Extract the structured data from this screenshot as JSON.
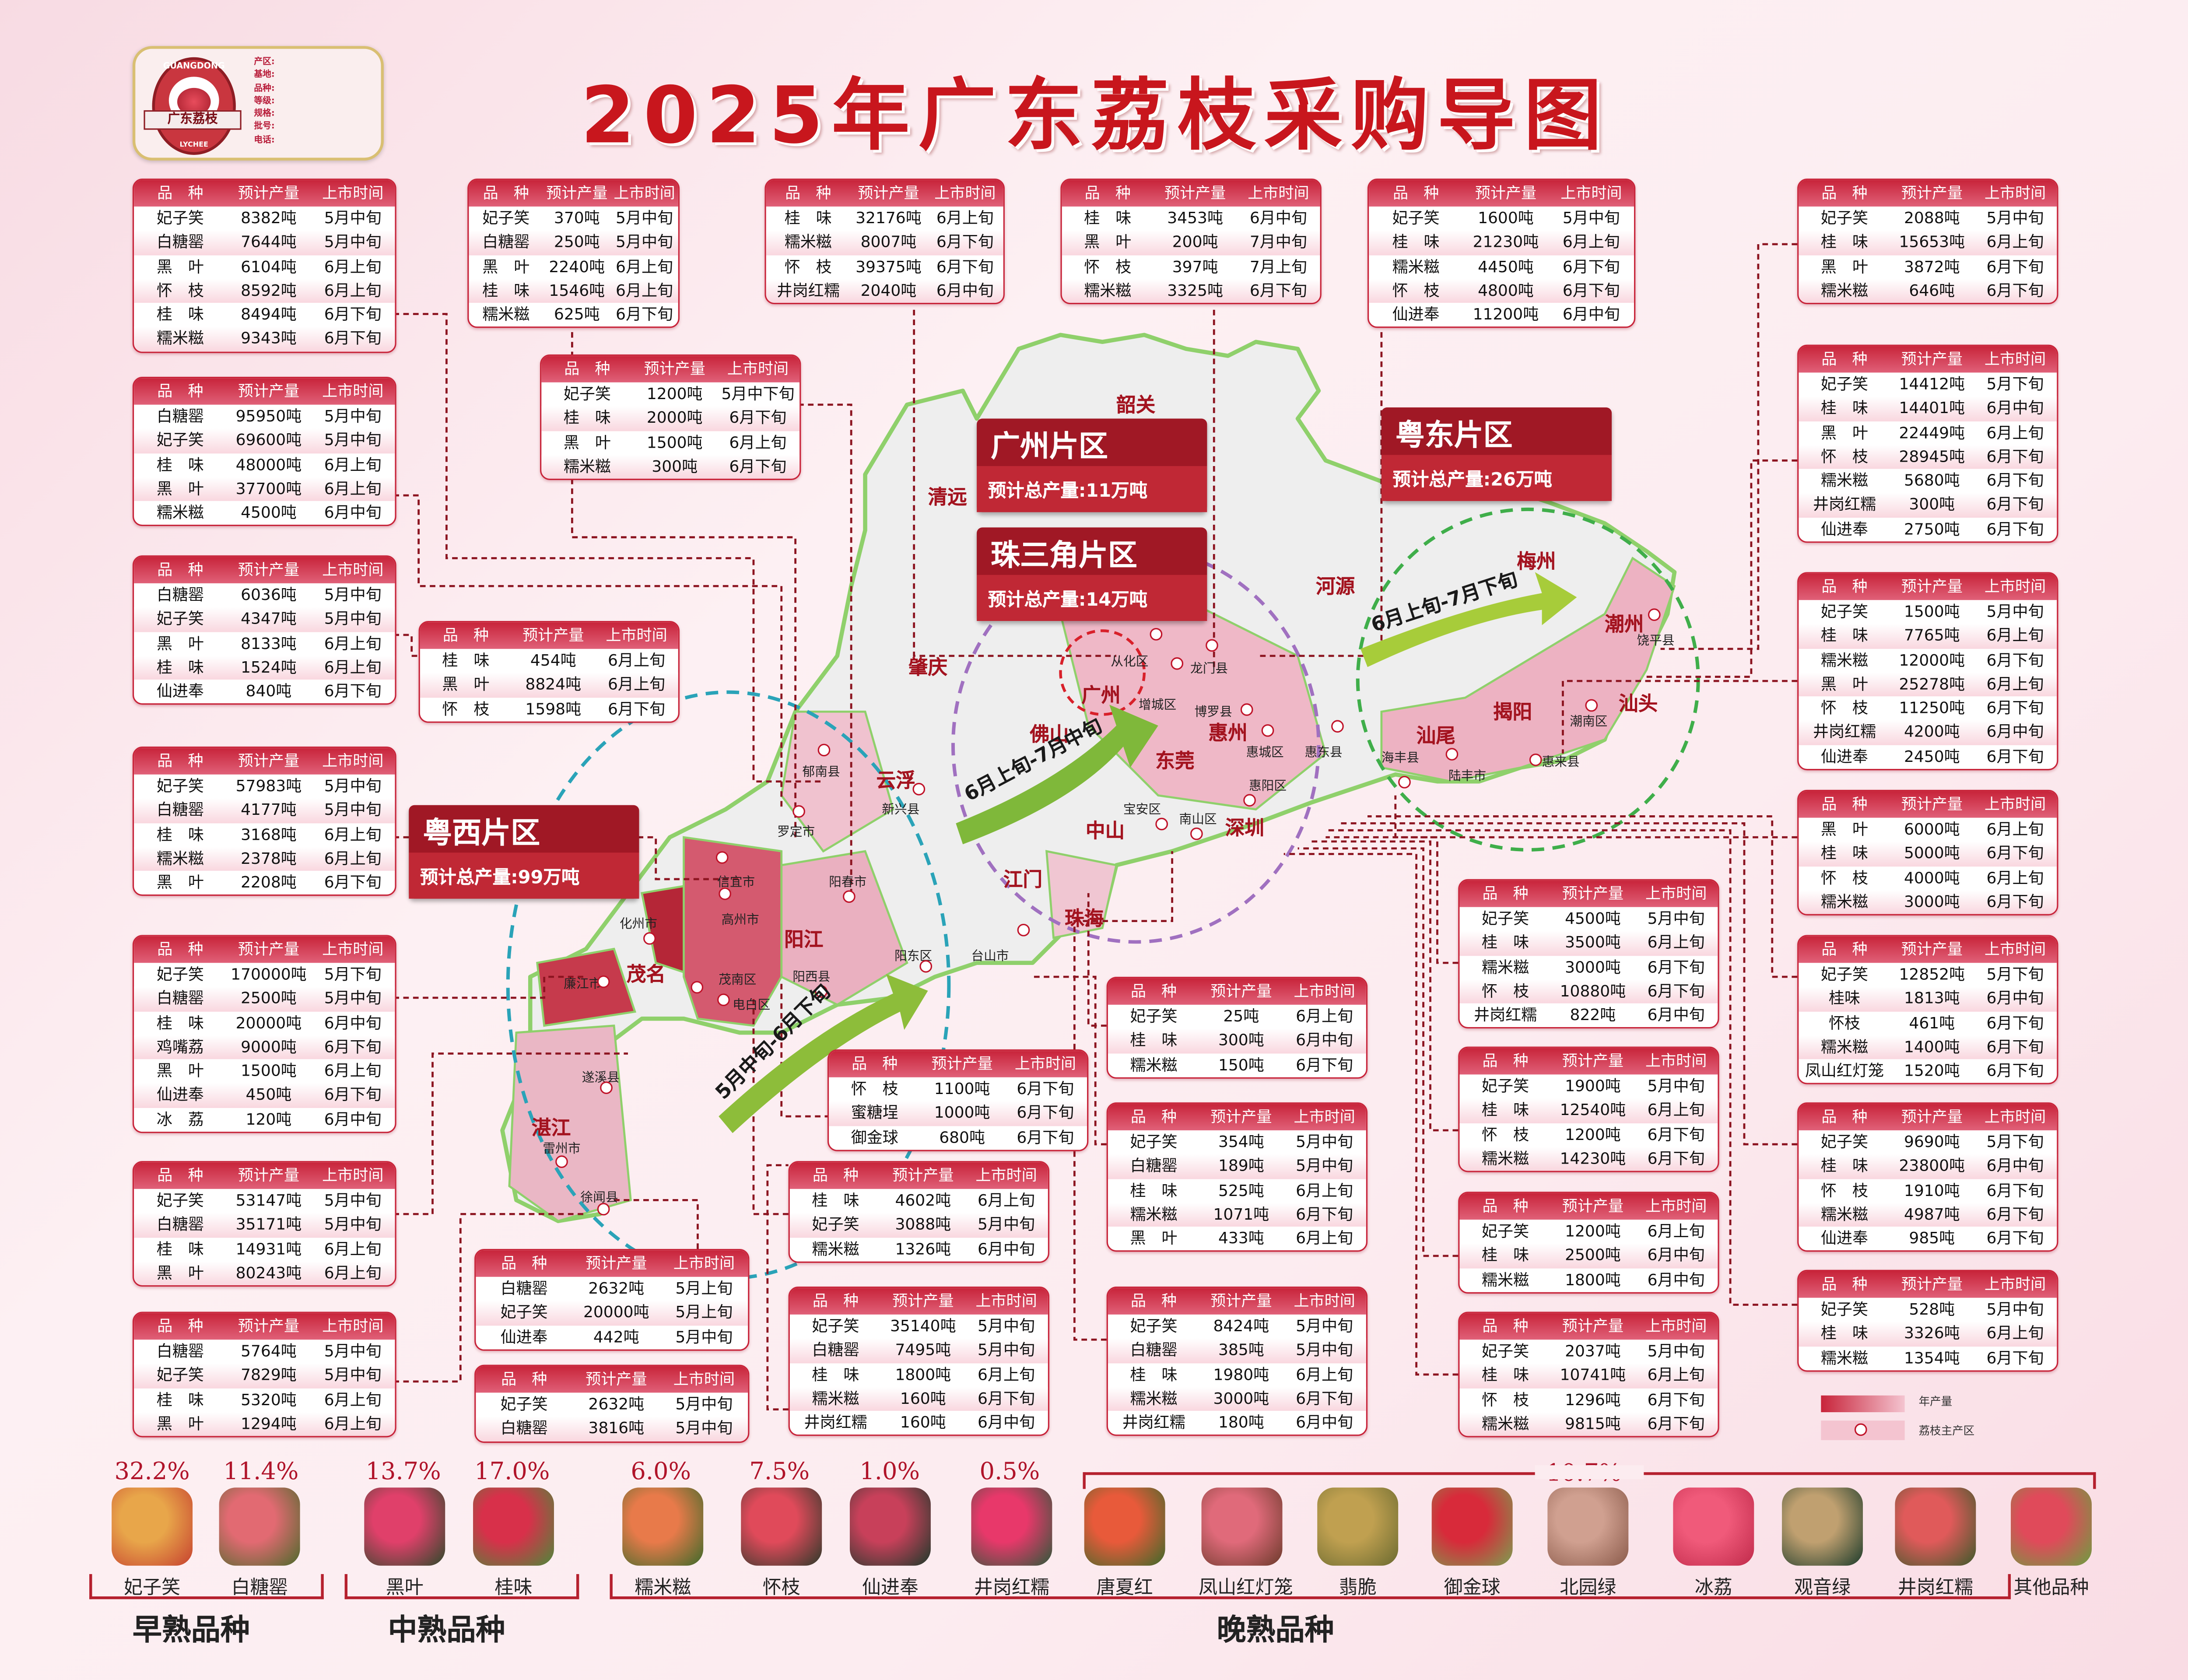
{
  "title": "2025年广东荔枝采购导图",
  "logo": {
    "brand_cn": "广东荔枝",
    "brand_en_top": "GUANGDONG",
    "brand_en_bottom": "LYCHEE",
    "fields": [
      "产区:",
      "基地:",
      "品种:",
      "等级:",
      "规格:",
      "批号:",
      "电话:"
    ]
  },
  "table_header": [
    "品　种",
    "预计产量",
    "上市时间"
  ],
  "tables": [
    {
      "rows": [
        [
          "妃子笑",
          "8382吨",
          "5月中旬"
        ],
        [
          "白糖罂",
          "7644吨",
          "5月中旬"
        ],
        [
          "黑　叶",
          "6104吨",
          "6月上旬"
        ],
        [
          "怀　枝",
          "8592吨",
          "6月上旬"
        ],
        [
          "桂　味",
          "8494吨",
          "6月下旬"
        ],
        [
          "糯米糍",
          "9343吨",
          "6月下旬"
        ]
      ]
    },
    {
      "rows": [
        [
          "白糖罂",
          "95950吨",
          "5月中旬"
        ],
        [
          "妃子笑",
          "69600吨",
          "5月中旬"
        ],
        [
          "桂　味",
          "48000吨",
          "6月上旬"
        ],
        [
          "黑　叶",
          "37700吨",
          "6月上旬"
        ],
        [
          "糯米糍",
          "4500吨",
          "6月中旬"
        ]
      ]
    },
    {
      "rows": [
        [
          "白糖罂",
          "6036吨",
          "5月中旬"
        ],
        [
          "妃子笑",
          "4347吨",
          "5月中旬"
        ],
        [
          "黑　叶",
          "8133吨",
          "6月上旬"
        ],
        [
          "桂　味",
          "1524吨",
          "6月上旬"
        ],
        [
          "仙进奉",
          "840吨",
          "6月下旬"
        ]
      ]
    },
    {
      "rows": [
        [
          "妃子笑",
          "57983吨",
          "5月中旬"
        ],
        [
          "白糖罂",
          "4177吨",
          "5月中旬"
        ],
        [
          "桂　味",
          "3168吨",
          "6月上旬"
        ],
        [
          "糯米糍",
          "2378吨",
          "6月上旬"
        ],
        [
          "黑　叶",
          "2208吨",
          "6月下旬"
        ]
      ]
    },
    {
      "rows": [
        [
          "妃子笑",
          "170000吨",
          "5月下旬"
        ],
        [
          "白糖罂",
          "2500吨",
          "5月中旬"
        ],
        [
          "桂　味",
          "20000吨",
          "6月中旬"
        ],
        [
          "鸡嘴荔",
          "9000吨",
          "6月下旬"
        ],
        [
          "黑　叶",
          "1500吨",
          "6月上旬"
        ],
        [
          "仙进奉",
          "450吨",
          "6月下旬"
        ],
        [
          "冰　荔",
          "120吨",
          "6月中旬"
        ]
      ]
    },
    {
      "rows": [
        [
          "妃子笑",
          "53147吨",
          "5月中旬"
        ],
        [
          "白糖罂",
          "35171吨",
          "5月中旬"
        ],
        [
          "桂　味",
          "14931吨",
          "6月上旬"
        ],
        [
          "黑　叶",
          "80243吨",
          "6月上旬"
        ]
      ]
    },
    {
      "rows": [
        [
          "白糖罂",
          "5764吨",
          "5月中旬"
        ],
        [
          "妃子笑",
          "7829吨",
          "5月中旬"
        ],
        [
          "桂　味",
          "5320吨",
          "6月上旬"
        ],
        [
          "黑　叶",
          "1294吨",
          "6月上旬"
        ]
      ]
    },
    {
      "rows": [
        [
          "妃子笑",
          "370吨",
          "5月中旬"
        ],
        [
          "白糖罂",
          "250吨",
          "5月中旬"
        ],
        [
          "黑　叶",
          "2240吨",
          "6月上旬"
        ],
        [
          "桂　味",
          "1546吨",
          "6月上旬"
        ],
        [
          "糯米糍",
          "625吨",
          "6月下旬"
        ]
      ]
    },
    {
      "rows": [
        [
          "妃子笑",
          "1200吨",
          "5月中下旬"
        ],
        [
          "桂　味",
          "2000吨",
          "6月下旬"
        ],
        [
          "黑　叶",
          "1500吨",
          "6月上旬"
        ],
        [
          "糯米糍",
          "300吨",
          "6月下旬"
        ]
      ]
    },
    {
      "rows": [
        [
          "桂　味",
          "454吨",
          "6月上旬"
        ],
        [
          "黑　叶",
          "8824吨",
          "6月上旬"
        ],
        [
          "怀　枝",
          "1598吨",
          "6月下旬"
        ]
      ]
    },
    {
      "rows": [
        [
          "桂　味",
          "32176吨",
          "6月上旬"
        ],
        [
          "糯米糍",
          "8007吨",
          "6月下旬"
        ],
        [
          "怀　枝",
          "39375吨",
          "6月下旬"
        ],
        [
          "井岗红糯",
          "2040吨",
          "6月中旬"
        ]
      ]
    },
    {
      "rows": [
        [
          "桂　味",
          "3453吨",
          "6月中旬"
        ],
        [
          "黑　叶",
          "200吨",
          "7月中旬"
        ],
        [
          "怀　枝",
          "397吨",
          "7月上旬"
        ],
        [
          "糯米糍",
          "3325吨",
          "6月下旬"
        ]
      ]
    },
    {
      "rows": [
        [
          "妃子笑",
          "1600吨",
          "5月中旬"
        ],
        [
          "桂　味",
          "21230吨",
          "6月上旬"
        ],
        [
          "糯米糍",
          "4450吨",
          "6月下旬"
        ],
        [
          "怀　枝",
          "4800吨",
          "6月下旬"
        ],
        [
          "仙进奉",
          "11200吨",
          "6月中旬"
        ]
      ]
    },
    {
      "rows": [
        [
          "妃子笑",
          "2088吨",
          "5月中旬"
        ],
        [
          "桂　味",
          "15653吨",
          "6月上旬"
        ],
        [
          "黑　叶",
          "3872吨",
          "6月下旬"
        ],
        [
          "糯米糍",
          "646吨",
          "6月下旬"
        ]
      ]
    },
    {
      "rows": [
        [
          "妃子笑",
          "14412吨",
          "5月下旬"
        ],
        [
          "桂　味",
          "14401吨",
          "6月中旬"
        ],
        [
          "黑　叶",
          "22449吨",
          "6月上旬"
        ],
        [
          "怀　枝",
          "28945吨",
          "6月下旬"
        ],
        [
          "糯米糍",
          "5680吨",
          "6月下旬"
        ],
        [
          "井岗红糯",
          "300吨",
          "6月下旬"
        ],
        [
          "仙进奉",
          "2750吨",
          "6月下旬"
        ]
      ]
    },
    {
      "rows": [
        [
          "妃子笑",
          "1500吨",
          "5月中旬"
        ],
        [
          "桂　味",
          "7765吨",
          "6月上旬"
        ],
        [
          "糯米糍",
          "12000吨",
          "6月下旬"
        ],
        [
          "黑　叶",
          "25278吨",
          "6月上旬"
        ],
        [
          "怀　枝",
          "11250吨",
          "6月下旬"
        ],
        [
          "井岗红糯",
          "4200吨",
          "6月中旬"
        ],
        [
          "仙进奉",
          "2450吨",
          "6月下旬"
        ]
      ]
    },
    {
      "rows": [
        [
          "黑　叶",
          "6000吨",
          "6月上旬"
        ],
        [
          "桂　味",
          "5000吨",
          "6月下旬"
        ],
        [
          "怀　枝",
          "4000吨",
          "6月上旬"
        ],
        [
          "糯米糍",
          "3000吨",
          "6月下旬"
        ]
      ]
    },
    {
      "rows": [
        [
          "妃子笑",
          "12852吨",
          "5月下旬"
        ],
        [
          "桂味",
          "1813吨",
          "6月中旬"
        ],
        [
          "怀枝",
          "461吨",
          "6月下旬"
        ],
        [
          "糯米糍",
          "1400吨",
          "6月下旬"
        ],
        [
          "凤山红灯笼",
          "1520吨",
          "6月下旬"
        ]
      ]
    },
    {
      "rows": [
        [
          "妃子笑",
          "9690吨",
          "5月下旬"
        ],
        [
          "桂　味",
          "23800吨",
          "6月中旬"
        ],
        [
          "怀　枝",
          "1910吨",
          "6月下旬"
        ],
        [
          "糯米糍",
          "4987吨",
          "6月下旬"
        ],
        [
          "仙进奉",
          "985吨",
          "6月下旬"
        ]
      ]
    },
    {
      "rows": [
        [
          "妃子笑",
          "528吨",
          "5月中旬"
        ],
        [
          "桂　味",
          "3326吨",
          "6月上旬"
        ],
        [
          "糯米糍",
          "1354吨",
          "6月下旬"
        ]
      ]
    },
    {
      "rows": [
        [
          "妃子笑",
          "4500吨",
          "5月中旬"
        ],
        [
          "桂　味",
          "3500吨",
          "6月上旬"
        ],
        [
          "糯米糍",
          "3000吨",
          "6月下旬"
        ],
        [
          "怀　枝",
          "10880吨",
          "6月下旬"
        ],
        [
          "井岗红糯",
          "822吨",
          "6月中旬"
        ]
      ]
    },
    {
      "rows": [
        [
          "妃子笑",
          "1900吨",
          "5月中旬"
        ],
        [
          "桂　味",
          "12540吨",
          "6月上旬"
        ],
        [
          "怀　枝",
          "1200吨",
          "6月下旬"
        ],
        [
          "糯米糍",
          "14230吨",
          "6月下旬"
        ]
      ]
    },
    {
      "rows": [
        [
          "妃子笑",
          "1200吨",
          "6月上旬"
        ],
        [
          "桂　味",
          "2500吨",
          "6月中旬"
        ],
        [
          "糯米糍",
          "1800吨",
          "6月中旬"
        ]
      ]
    },
    {
      "rows": [
        [
          "妃子笑",
          "2037吨",
          "5月中旬"
        ],
        [
          "桂　味",
          "10741吨",
          "6月上旬"
        ],
        [
          "怀　枝",
          "1296吨",
          "6月下旬"
        ],
        [
          "糯米糍",
          "9815吨",
          "6月下旬"
        ]
      ]
    },
    {
      "rows": [
        [
          "妃子笑",
          "25吨",
          "6月上旬"
        ],
        [
          "桂　味",
          "300吨",
          "6月中旬"
        ],
        [
          "糯米糍",
          "150吨",
          "6月下旬"
        ]
      ]
    },
    {
      "rows": [
        [
          "妃子笑",
          "354吨",
          "5月中旬"
        ],
        [
          "白糖罂",
          "189吨",
          "5月中旬"
        ],
        [
          "桂　味",
          "525吨",
          "6月上旬"
        ],
        [
          "糯米糍",
          "1071吨",
          "6月下旬"
        ],
        [
          "黑　叶",
          "433吨",
          "6月上旬"
        ]
      ]
    },
    {
      "rows": [
        [
          "妃子笑",
          "8424吨",
          "5月中旬"
        ],
        [
          "白糖罂",
          "385吨",
          "5月中旬"
        ],
        [
          "桂　味",
          "1980吨",
          "6月上旬"
        ],
        [
          "糯米糍",
          "3000吨",
          "6月下旬"
        ],
        [
          "井岗红糯",
          "180吨",
          "6月中旬"
        ]
      ]
    },
    {
      "rows": [
        [
          "怀　枝",
          "1100吨",
          "6月下旬"
        ],
        [
          "蜜糖埕",
          "1000吨",
          "6月下旬"
        ],
        [
          "御金球",
          "680吨",
          "6月下旬"
        ]
      ]
    },
    {
      "rows": [
        [
          "桂　味",
          "4602吨",
          "6月上旬"
        ],
        [
          "妃子笑",
          "3088吨",
          "5月中旬"
        ],
        [
          "糯米糍",
          "1326吨",
          "6月中旬"
        ]
      ]
    },
    {
      "rows": [
        [
          "妃子笑",
          "35140吨",
          "5月中旬"
        ],
        [
          "白糖罂",
          "7495吨",
          "5月中旬"
        ],
        [
          "桂　味",
          "1800吨",
          "6月上旬"
        ],
        [
          "糯米糍",
          "160吨",
          "6月下旬"
        ],
        [
          "井岗红糯",
          "160吨",
          "6月中旬"
        ]
      ]
    },
    {
      "rows": [
        [
          "白糖罂",
          "2632吨",
          "5月上旬"
        ],
        [
          "妃子笑",
          "20000吨",
          "5月上旬"
        ],
        [
          "仙进奉",
          "442吨",
          "5月中旬"
        ]
      ]
    },
    {
      "rows": [
        [
          "妃子笑",
          "2632吨",
          "5月中旬"
        ],
        [
          "白糖罂",
          "3816吨",
          "5月中旬"
        ]
      ]
    }
  ],
  "regions": [
    {
      "name": "广州片区",
      "total": "预计总产量:11万吨"
    },
    {
      "name": "珠三角片区",
      "total": "预计总产量:14万吨"
    },
    {
      "name": "粤东片区",
      "total": "预计总产量:26万吨"
    },
    {
      "name": "粤西片区",
      "total": "预计总产量:99万吨"
    }
  ],
  "arrows": [
    "6月上旬-7月中旬",
    "6月上旬-7月下旬",
    "5月中旬-6月下旬"
  ],
  "map_cities": [
    "韶关",
    "清远",
    "河源",
    "梅州",
    "潮州",
    "肇庆",
    "广州",
    "佛山",
    "惠州",
    "揭阳",
    "汕头",
    "汕尾",
    "东莞",
    "深圳",
    "中山",
    "云浮",
    "江门",
    "珠海",
    "阳江",
    "茂名",
    "湛江"
  ],
  "map_counties": [
    "饶平县",
    "从化区",
    "龙门县",
    "增城区",
    "博罗县",
    "惠城区",
    "惠东县",
    "潮南区",
    "海丰县",
    "陆丰市",
    "惠来县",
    "惠阳区",
    "宝安区",
    "南山区",
    "新兴县",
    "郁南县",
    "罗定市",
    "信宜市",
    "阳春市",
    "台山市",
    "阳东区",
    "化州市",
    "高州市",
    "廉江市",
    "茂南区",
    "阳西县",
    "电白区",
    "遂溪县",
    "雷州市",
    "徐闻县"
  ],
  "varieties": {
    "items": [
      "妃子笑",
      "白糖罂",
      "黑叶",
      "桂味",
      "糯米糍",
      "怀枝",
      "仙进奉",
      "井岗红糯",
      "唐夏红",
      "凤山红灯笼",
      "翡脆",
      "御金球",
      "北园绿",
      "冰荔",
      "观音绿",
      "井岗红糯",
      "其他品种"
    ],
    "percentages": [
      "32.2%",
      "11.4%",
      "13.7%",
      "17.0%",
      "6.0%",
      "7.5%",
      "1.0%",
      "0.5%",
      "10.7%"
    ],
    "groups": [
      "早熟品种",
      "中熟品种",
      "晚熟品种"
    ]
  },
  "legend": {
    "production": "年产量",
    "main_area": "荔枝主产区"
  },
  "colors": {
    "accent": "#c8161d",
    "table_header": "#c8243a",
    "region_box": "#b0202e",
    "map_border": "#8fd06b",
    "yuexi_circle": "#2aa3b8",
    "zhusanjiao_circle": "#a070c0",
    "yuedong_circle": "#3fae4a"
  }
}
